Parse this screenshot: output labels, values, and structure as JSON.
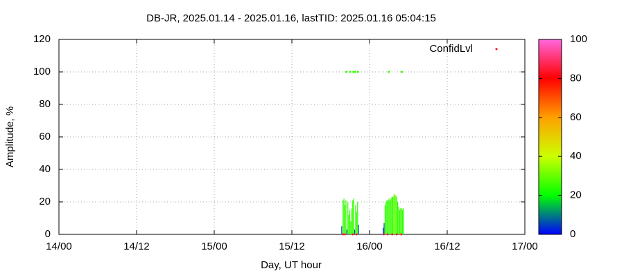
{
  "chart_data": {
    "type": "impulse",
    "title": "DB-JR, 2025.01.14 - 2025.01.16, lastTID: 2025.01.16 05:04:15",
    "xlabel": "Day, UT hour",
    "ylabel": "Amplitude, %",
    "xlim": [
      0,
      72
    ],
    "xticks": [
      {
        "value": 0,
        "label": "14/00"
      },
      {
        "value": 12,
        "label": "14/12"
      },
      {
        "value": 24,
        "label": "15/00"
      },
      {
        "value": 36,
        "label": "15/12"
      },
      {
        "value": 48,
        "label": "16/00"
      },
      {
        "value": 60,
        "label": "16/12"
      },
      {
        "value": 72,
        "label": "17/00"
      }
    ],
    "ylim": [
      0,
      120
    ],
    "yticks": [
      0,
      20,
      40,
      60,
      80,
      100,
      120
    ],
    "grid": true,
    "legend_position": "top-right",
    "series": [
      {
        "name": "ConfidLvl",
        "legend_color": "#ff0000",
        "x": [
          43.7,
          43.9,
          44.05,
          44.2,
          44.35,
          44.5,
          44.65,
          44.8,
          44.95,
          45.1,
          45.25,
          45.4,
          45.55,
          45.7,
          45.85,
          46.0,
          46.15,
          46.3,
          50.1,
          50.25,
          50.4,
          50.55,
          50.7,
          50.85,
          51.0,
          51.15,
          51.3,
          51.45,
          51.6,
          51.75,
          51.9,
          52.05,
          52.2,
          52.35,
          52.5,
          52.65,
          52.8,
          52.95,
          53.1,
          53.25
        ],
        "values": [
          5,
          21,
          22,
          18,
          21,
          3,
          20,
          12,
          15,
          8,
          16,
          21,
          22,
          3,
          18,
          14,
          20,
          6,
          4,
          7,
          18,
          20,
          21,
          21,
          22,
          21,
          22,
          23,
          23,
          24,
          25,
          24,
          23,
          20,
          17,
          15,
          16,
          16,
          15,
          16
        ],
        "confid": [
          5,
          25,
          25,
          25,
          25,
          5,
          25,
          25,
          25,
          25,
          25,
          25,
          25,
          5,
          25,
          25,
          25,
          5,
          5,
          5,
          25,
          25,
          25,
          25,
          25,
          25,
          25,
          25,
          25,
          28,
          30,
          28,
          25,
          25,
          25,
          25,
          25,
          25,
          25,
          25
        ]
      }
    ],
    "points": {
      "x": [
        44.4,
        45.0,
        45.5,
        45.8,
        46.2,
        51.0,
        53.0,
        43.9,
        44.2,
        45.4,
        46.0,
        50.2,
        50.8,
        51.5,
        52.2,
        52.9
      ],
      "values": [
        100,
        100,
        100,
        100,
        100,
        100,
        100,
        0,
        0,
        0,
        0,
        0,
        0,
        0,
        0,
        0
      ],
      "confid": [
        25,
        25,
        25,
        25,
        25,
        25,
        25,
        85,
        85,
        85,
        85,
        85,
        85,
        85,
        85,
        85
      ]
    },
    "colorbar": {
      "lim": [
        0,
        100
      ],
      "ticks": [
        0,
        20,
        40,
        60,
        80,
        100
      ],
      "palette": [
        "#0000ff",
        "#00ff00",
        "#ccff00",
        "#ffa000",
        "#ff0000",
        "#ff66dd"
      ]
    }
  }
}
